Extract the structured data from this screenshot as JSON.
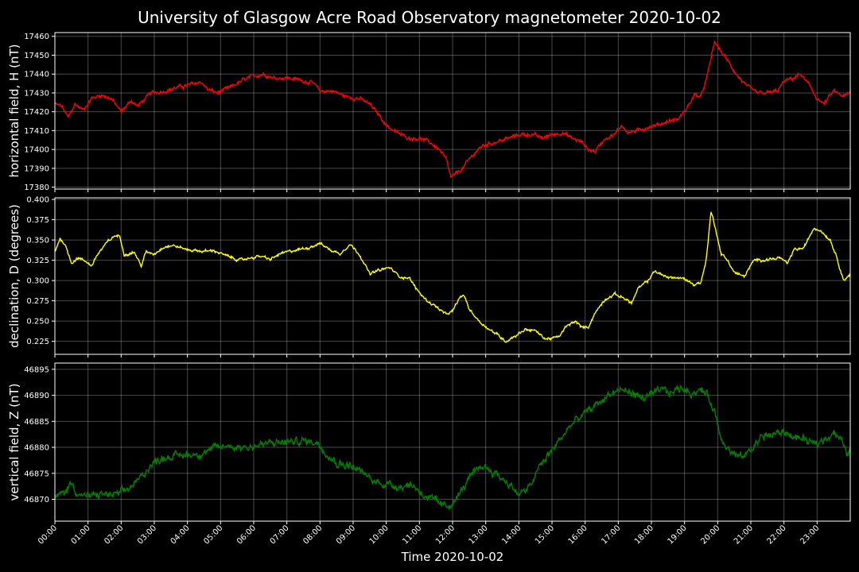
{
  "chart_data": {
    "type": "line",
    "title": "University of Glasgow Acre Road Observatory magnetometer 2020-10-02",
    "xlabel": "Time 2020-10-02",
    "x_unit": "hours",
    "xlim": [
      0,
      24
    ],
    "x_tick_labels": [
      "00:00",
      "01:00",
      "02:00",
      "03:00",
      "04:00",
      "05:00",
      "06:00",
      "07:00",
      "08:00",
      "09:00",
      "10:00",
      "11:00",
      "12:00",
      "13:00",
      "14:00",
      "15:00",
      "16:00",
      "17:00",
      "18:00",
      "19:00",
      "20:00",
      "21:00",
      "22:00",
      "23:00"
    ],
    "grid": true,
    "panels": [
      {
        "ylabel": "horizontal field, H (nT)",
        "color": "#ff0000",
        "ylim": [
          17379,
          17462
        ],
        "yticks": [
          17380,
          17390,
          17400,
          17410,
          17420,
          17430,
          17440,
          17450,
          17460
        ],
        "ytick_labels": [
          "17380",
          "17390",
          "17400",
          "17410",
          "17420",
          "17430",
          "17440",
          "17450",
          "17460"
        ],
        "noise": 1.2,
        "points": [
          [
            0,
            17424
          ],
          [
            0.2,
            17423
          ],
          [
            0.4,
            17417
          ],
          [
            0.6,
            17424
          ],
          [
            0.85,
            17421
          ],
          [
            1.1,
            17427
          ],
          [
            1.4,
            17429
          ],
          [
            1.7,
            17427
          ],
          [
            2.0,
            17420
          ],
          [
            2.3,
            17426
          ],
          [
            2.5,
            17423
          ],
          [
            2.9,
            17430
          ],
          [
            3.3,
            17431
          ],
          [
            3.7,
            17433
          ],
          [
            4.0,
            17434
          ],
          [
            4.4,
            17436
          ],
          [
            4.6,
            17432
          ],
          [
            4.9,
            17430
          ],
          [
            5.3,
            17433
          ],
          [
            5.7,
            17437
          ],
          [
            6.0,
            17439
          ],
          [
            6.3,
            17440
          ],
          [
            6.6,
            17438
          ],
          [
            7.0,
            17438
          ],
          [
            7.4,
            17437
          ],
          [
            7.8,
            17435
          ],
          [
            8.0,
            17431
          ],
          [
            8.4,
            17431
          ],
          [
            8.8,
            17428
          ],
          [
            9.2,
            17427
          ],
          [
            9.5,
            17424
          ],
          [
            9.8,
            17418
          ],
          [
            10.0,
            17413
          ],
          [
            10.3,
            17409
          ],
          [
            10.7,
            17406
          ],
          [
            11.0,
            17406
          ],
          [
            11.3,
            17404
          ],
          [
            11.6,
            17400
          ],
          [
            11.8,
            17395
          ],
          [
            11.95,
            17385
          ],
          [
            12.1,
            17387
          ],
          [
            12.3,
            17390
          ],
          [
            12.6,
            17397
          ],
          [
            12.9,
            17402
          ],
          [
            13.3,
            17404
          ],
          [
            13.7,
            17406
          ],
          [
            14.0,
            17408
          ],
          [
            14.4,
            17408
          ],
          [
            14.7,
            17406
          ],
          [
            15.0,
            17408
          ],
          [
            15.3,
            17409
          ],
          [
            15.6,
            17406
          ],
          [
            15.9,
            17404
          ],
          [
            16.1,
            17400
          ],
          [
            16.3,
            17399
          ],
          [
            16.6,
            17406
          ],
          [
            16.9,
            17408
          ],
          [
            17.1,
            17413
          ],
          [
            17.3,
            17409
          ],
          [
            17.6,
            17410
          ],
          [
            17.9,
            17412
          ],
          [
            18.2,
            17413
          ],
          [
            18.5,
            17415
          ],
          [
            18.8,
            17416
          ],
          [
            19.0,
            17420
          ],
          [
            19.3,
            17429
          ],
          [
            19.5,
            17428
          ],
          [
            19.7,
            17440
          ],
          [
            19.9,
            17457
          ],
          [
            20.1,
            17452
          ],
          [
            20.3,
            17447
          ],
          [
            20.6,
            17439
          ],
          [
            20.9,
            17433
          ],
          [
            21.2,
            17430
          ],
          [
            21.5,
            17430
          ],
          [
            21.8,
            17431
          ],
          [
            22.0,
            17436
          ],
          [
            22.3,
            17438
          ],
          [
            22.5,
            17440
          ],
          [
            22.8,
            17433
          ],
          [
            23.0,
            17427
          ],
          [
            23.2,
            17424
          ],
          [
            23.5,
            17431
          ],
          [
            23.8,
            17428
          ],
          [
            24.0,
            17430
          ]
        ]
      },
      {
        "ylabel": "declination, D (degrees)",
        "color": "#ffff00",
        "ylim": [
          0.209,
          0.402
        ],
        "yticks": [
          0.225,
          0.25,
          0.275,
          0.3,
          0.325,
          0.35,
          0.375,
          0.4
        ],
        "ytick_labels": [
          "0.225",
          "0.250",
          "0.275",
          "0.300",
          "0.325",
          "0.350",
          "0.375",
          "0.400"
        ],
        "noise": 0.002,
        "points": [
          [
            0,
            0.335
          ],
          [
            0.15,
            0.352
          ],
          [
            0.3,
            0.345
          ],
          [
            0.5,
            0.322
          ],
          [
            0.7,
            0.328
          ],
          [
            1.0,
            0.322
          ],
          [
            1.1,
            0.318
          ],
          [
            1.3,
            0.333
          ],
          [
            1.6,
            0.348
          ],
          [
            1.8,
            0.355
          ],
          [
            1.95,
            0.355
          ],
          [
            2.1,
            0.332
          ],
          [
            2.4,
            0.335
          ],
          [
            2.6,
            0.318
          ],
          [
            2.75,
            0.335
          ],
          [
            3.0,
            0.333
          ],
          [
            3.3,
            0.342
          ],
          [
            3.6,
            0.343
          ],
          [
            4.0,
            0.338
          ],
          [
            4.5,
            0.336
          ],
          [
            4.8,
            0.337
          ],
          [
            5.2,
            0.33
          ],
          [
            5.6,
            0.325
          ],
          [
            5.9,
            0.328
          ],
          [
            6.2,
            0.33
          ],
          [
            6.5,
            0.326
          ],
          [
            6.8,
            0.333
          ],
          [
            7.2,
            0.337
          ],
          [
            7.6,
            0.34
          ],
          [
            8.0,
            0.346
          ],
          [
            8.3,
            0.338
          ],
          [
            8.6,
            0.333
          ],
          [
            8.9,
            0.345
          ],
          [
            9.2,
            0.332
          ],
          [
            9.5,
            0.308
          ],
          [
            9.8,
            0.313
          ],
          [
            10.1,
            0.316
          ],
          [
            10.4,
            0.305
          ],
          [
            10.7,
            0.303
          ],
          [
            10.9,
            0.29
          ],
          [
            11.2,
            0.276
          ],
          [
            11.5,
            0.268
          ],
          [
            11.8,
            0.258
          ],
          [
            12.0,
            0.262
          ],
          [
            12.2,
            0.278
          ],
          [
            12.35,
            0.282
          ],
          [
            12.5,
            0.265
          ],
          [
            12.8,
            0.25
          ],
          [
            13.1,
            0.24
          ],
          [
            13.4,
            0.232
          ],
          [
            13.6,
            0.225
          ],
          [
            13.9,
            0.232
          ],
          [
            14.2,
            0.24
          ],
          [
            14.5,
            0.238
          ],
          [
            14.8,
            0.228
          ],
          [
            15.2,
            0.23
          ],
          [
            15.4,
            0.242
          ],
          [
            15.7,
            0.25
          ],
          [
            15.9,
            0.242
          ],
          [
            16.1,
            0.243
          ],
          [
            16.3,
            0.26
          ],
          [
            16.6,
            0.277
          ],
          [
            16.9,
            0.283
          ],
          [
            17.2,
            0.278
          ],
          [
            17.4,
            0.272
          ],
          [
            17.6,
            0.29
          ],
          [
            17.9,
            0.3
          ],
          [
            18.1,
            0.312
          ],
          [
            18.4,
            0.305
          ],
          [
            18.8,
            0.303
          ],
          [
            19.0,
            0.302
          ],
          [
            19.3,
            0.295
          ],
          [
            19.5,
            0.298
          ],
          [
            19.65,
            0.325
          ],
          [
            19.8,
            0.385
          ],
          [
            19.95,
            0.362
          ],
          [
            20.1,
            0.333
          ],
          [
            20.3,
            0.325
          ],
          [
            20.5,
            0.31
          ],
          [
            20.8,
            0.305
          ],
          [
            21.1,
            0.325
          ],
          [
            21.5,
            0.326
          ],
          [
            21.9,
            0.328
          ],
          [
            22.1,
            0.32
          ],
          [
            22.3,
            0.338
          ],
          [
            22.6,
            0.34
          ],
          [
            22.9,
            0.365
          ],
          [
            23.1,
            0.362
          ],
          [
            23.4,
            0.35
          ],
          [
            23.6,
            0.328
          ],
          [
            23.8,
            0.3
          ],
          [
            24.0,
            0.308
          ]
        ]
      },
      {
        "ylabel": "vertical field, Z (nT)",
        "color": "#008000",
        "ylim": [
          46865.8,
          46896.2
        ],
        "yticks": [
          46870,
          46875,
          46880,
          46885,
          46890,
          46895
        ],
        "ytick_labels": [
          "46870",
          "46875",
          "46880",
          "46885",
          "46890",
          "46895"
        ],
        "noise": 0.9,
        "points": [
          [
            0,
            46870.2
          ],
          [
            0.3,
            46871.5
          ],
          [
            0.5,
            46873.2
          ],
          [
            0.7,
            46871
          ],
          [
            1.0,
            46870.5
          ],
          [
            1.4,
            46871
          ],
          [
            1.8,
            46870.8
          ],
          [
            2.1,
            46871.5
          ],
          [
            2.5,
            46873.5
          ],
          [
            2.8,
            46876
          ],
          [
            3.2,
            46878
          ],
          [
            3.6,
            46878.3
          ],
          [
            4.0,
            46878.6
          ],
          [
            4.4,
            46878.8
          ],
          [
            4.8,
            46879.8
          ],
          [
            5.2,
            46880.3
          ],
          [
            5.6,
            46880
          ],
          [
            6.0,
            46880.2
          ],
          [
            6.5,
            46880.8
          ],
          [
            7.0,
            46881
          ],
          [
            7.5,
            46881.2
          ],
          [
            7.9,
            46881
          ],
          [
            8.2,
            46879
          ],
          [
            8.5,
            46877
          ],
          [
            8.9,
            46876.5
          ],
          [
            9.2,
            46875.5
          ],
          [
            9.6,
            46873.5
          ],
          [
            10.0,
            46873
          ],
          [
            10.4,
            46872.5
          ],
          [
            10.8,
            46872.8
          ],
          [
            11.1,
            46871
          ],
          [
            11.5,
            46869.5
          ],
          [
            11.8,
            46868.5
          ],
          [
            12.1,
            46870
          ],
          [
            12.5,
            46874
          ],
          [
            12.9,
            46876.5
          ],
          [
            13.3,
            46875
          ],
          [
            13.7,
            46873
          ],
          [
            14.0,
            46871
          ],
          [
            14.3,
            46872
          ],
          [
            14.6,
            46876
          ],
          [
            15.0,
            46879.5
          ],
          [
            15.3,
            46882
          ],
          [
            15.6,
            46884.5
          ],
          [
            16.0,
            46886.5
          ],
          [
            16.4,
            46888.5
          ],
          [
            16.8,
            46890.5
          ],
          [
            17.1,
            46891
          ],
          [
            17.4,
            46890.5
          ],
          [
            17.7,
            46889.5
          ],
          [
            18.0,
            46890
          ],
          [
            18.3,
            46891
          ],
          [
            18.6,
            46890.5
          ],
          [
            18.9,
            46891.5
          ],
          [
            19.2,
            46890.5
          ],
          [
            19.5,
            46891
          ],
          [
            19.7,
            46890
          ],
          [
            19.9,
            46887
          ],
          [
            20.1,
            46882
          ],
          [
            20.4,
            46879
          ],
          [
            20.7,
            46878
          ],
          [
            21.0,
            46879.5
          ],
          [
            21.3,
            46882
          ],
          [
            21.7,
            46882.5
          ],
          [
            22.0,
            46883
          ],
          [
            22.3,
            46882
          ],
          [
            22.6,
            46881.5
          ],
          [
            22.9,
            46880.5
          ],
          [
            23.2,
            46881.5
          ],
          [
            23.5,
            46883
          ],
          [
            23.7,
            46881.5
          ],
          [
            23.9,
            46879
          ],
          [
            24.0,
            46879.3
          ]
        ]
      }
    ]
  }
}
